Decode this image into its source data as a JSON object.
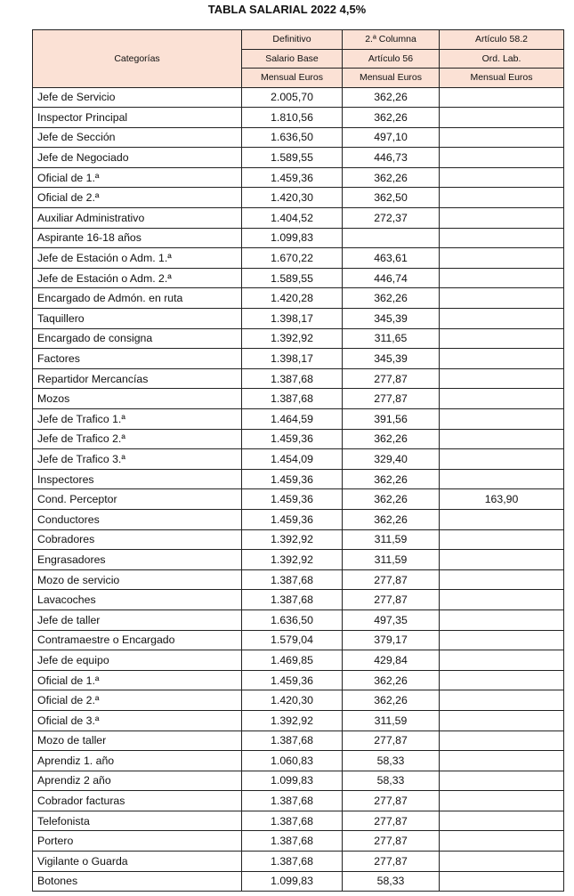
{
  "title": "TABLA SALARIAL 2022 4,5%",
  "header": {
    "categorias": "Categorías",
    "col2": [
      "Definitivo",
      "Salario Base",
      "Mensual Euros"
    ],
    "col3": [
      "2.ª Columna",
      "Artículo 56",
      "Mensual Euros"
    ],
    "col4": [
      "Artículo 58.2",
      "Ord. Lab.",
      "Mensual Euros"
    ]
  },
  "header_bg": "#fbe1d5",
  "rows": [
    [
      "Jefe de Servicio",
      "2.005,70",
      "362,26",
      ""
    ],
    [
      "Inspector Principal",
      "1.810,56",
      "362,26",
      ""
    ],
    [
      "Jefe de Sección",
      "1.636,50",
      "497,10",
      ""
    ],
    [
      "Jefe de Negociado",
      "1.589,55",
      "446,73",
      ""
    ],
    [
      "Oficial de 1.ª",
      "1.459,36",
      "362,26",
      ""
    ],
    [
      "Oficial de 2.ª",
      "1.420,30",
      "362,50",
      ""
    ],
    [
      "Auxiliar Administrativo",
      "1.404,52",
      "272,37",
      ""
    ],
    [
      "Aspirante 16-18 años",
      "1.099,83",
      "",
      ""
    ],
    [
      "Jefe de Estación o Adm. 1.ª",
      "1.670,22",
      "463,61",
      ""
    ],
    [
      "Jefe de Estación o Adm. 2.ª",
      "1.589,55",
      "446,74",
      ""
    ],
    [
      "Encargado de Admón. en ruta",
      "1.420,28",
      "362,26",
      ""
    ],
    [
      "Taquillero",
      "1.398,17",
      "345,39",
      ""
    ],
    [
      "Encargado de consigna",
      "1.392,92",
      "311,65",
      ""
    ],
    [
      "Factores",
      "1.398,17",
      "345,39",
      ""
    ],
    [
      "Repartidor Mercancías",
      "1.387,68",
      "277,87",
      ""
    ],
    [
      "Mozos",
      "1.387,68",
      "277,87",
      ""
    ],
    [
      "Jefe de Trafico 1.ª",
      "1.464,59",
      "391,56",
      ""
    ],
    [
      "Jefe de Trafico 2.ª",
      "1.459,36",
      "362,26",
      ""
    ],
    [
      "Jefe de Trafico 3.ª",
      "1.454,09",
      "329,40",
      ""
    ],
    [
      "Inspectores",
      "1.459,36",
      "362,26",
      ""
    ],
    [
      "Cond. Perceptor",
      "1.459,36",
      "362,26",
      "163,90"
    ],
    [
      "Conductores",
      "1.459,36",
      "362,26",
      ""
    ],
    [
      "Cobradores",
      "1.392,92",
      "311,59",
      ""
    ],
    [
      "Engrasadores",
      "1.392,92",
      "311,59",
      ""
    ],
    [
      "Mozo de servicio",
      "1.387,68",
      "277,87",
      ""
    ],
    [
      "Lavacoches",
      "1.387,68",
      "277,87",
      ""
    ],
    [
      "Jefe de taller",
      "1.636,50",
      "497,35",
      ""
    ],
    [
      "Contramaestre o Encargado",
      "1.579,04",
      "379,17",
      ""
    ],
    [
      "Jefe de equipo",
      "1.469,85",
      "429,84",
      ""
    ],
    [
      "Oficial de 1.ª",
      "1.459,36",
      "362,26",
      ""
    ],
    [
      "Oficial de 2.ª",
      "1.420,30",
      "362,26",
      ""
    ],
    [
      "Oficial de 3.ª",
      "1.392,92",
      "311,59",
      ""
    ],
    [
      "Mozo de taller",
      "1.387,68",
      "277,87",
      ""
    ],
    [
      "Aprendiz 1. año",
      "1.060,83",
      "58,33",
      ""
    ],
    [
      "Aprendiz 2 año",
      "1.099,83",
      "58,33",
      ""
    ],
    [
      "Cobrador facturas",
      "1.387,68",
      "277,87",
      ""
    ],
    [
      "Telefonista",
      "1.387,68",
      "277,87",
      ""
    ],
    [
      "Portero",
      "1.387,68",
      "277,87",
      ""
    ],
    [
      "Vigilante o Guarda",
      "1.387,68",
      "277,87",
      ""
    ],
    [
      "Botones",
      "1.099,83",
      "58,33",
      ""
    ]
  ]
}
